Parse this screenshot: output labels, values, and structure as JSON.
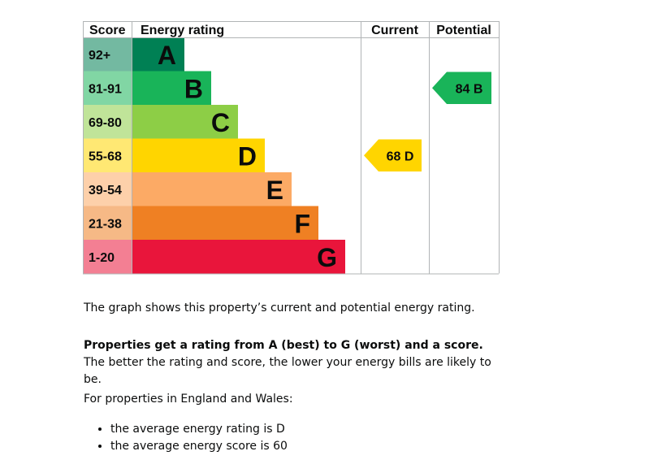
{
  "chart_data": {
    "type": "bar",
    "title": "Energy rating",
    "headers": {
      "score": "Score",
      "rating": "Energy rating",
      "current": "Current",
      "potential": "Potential"
    },
    "bands": [
      {
        "score": "92+",
        "letter": "A",
        "rank": 1,
        "color": "#008054"
      },
      {
        "score": "81-91",
        "letter": "B",
        "rank": 2,
        "color": "#19b459"
      },
      {
        "score": "69-80",
        "letter": "C",
        "rank": 3,
        "color": "#8dce46"
      },
      {
        "score": "55-68",
        "letter": "D",
        "rank": 4,
        "color": "#ffd500"
      },
      {
        "score": "39-54",
        "letter": "E",
        "rank": 5,
        "color": "#fcaa65"
      },
      {
        "score": "21-38",
        "letter": "F",
        "rank": 6,
        "color": "#ef8023"
      },
      {
        "score": "1-20",
        "letter": "G",
        "rank": 7,
        "color": "#e9153b"
      }
    ],
    "current": {
      "value": 68,
      "letter": "D",
      "label": "68 D",
      "color": "#ffd500"
    },
    "potential": {
      "value": 84,
      "letter": "B",
      "label": "84 B",
      "color": "#19b459"
    }
  },
  "text": {
    "intro": "The graph shows this property’s current and potential energy rating.",
    "rating_bold": "Properties get a rating from A (best) to G (worst) and a score.",
    "rating_rest": " The better the rating and score, the lower your energy bills are likely to be.",
    "region": "For properties in England and Wales:",
    "average_rating": "the average energy rating is D",
    "average_score": "the average energy score is 60"
  }
}
